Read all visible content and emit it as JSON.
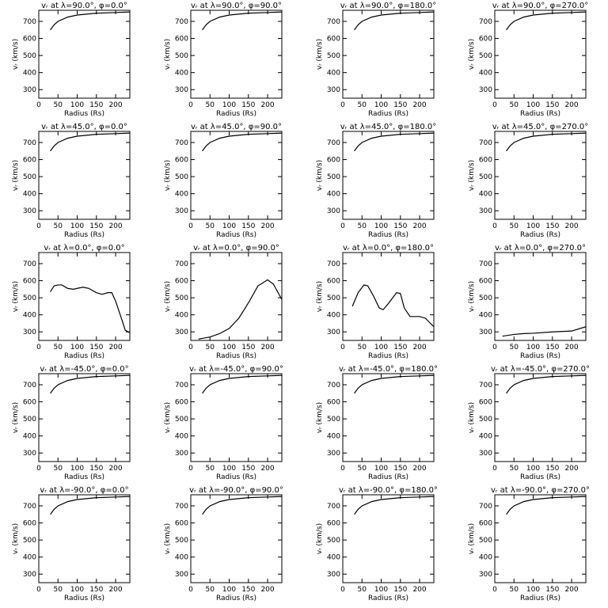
{
  "chart_data": [
    {
      "type": "line",
      "title": "vᵣ at λ=90.0°, φ=0.0°",
      "x_label": "Radius (Rs)",
      "y_label": "vᵣ (km/s)",
      "x": [
        30,
        40,
        50,
        75,
        100,
        150,
        200,
        237
      ],
      "values": [
        650,
        680,
        700,
        725,
        737,
        748,
        752,
        755
      ],
      "color": "#000000",
      "xlim": [
        0,
        237
      ],
      "ylim": [
        250,
        765
      ],
      "xticks": [
        0,
        50,
        100,
        150,
        200
      ],
      "yticks": [
        300,
        400,
        500,
        600,
        700
      ]
    },
    {
      "type": "line",
      "title": "vᵣ at λ=90.0°, φ=90.0°",
      "x_label": "Radius (Rs)",
      "y_label": "vᵣ (km/s)",
      "x": [
        30,
        40,
        50,
        75,
        100,
        150,
        200,
        237
      ],
      "values": [
        650,
        680,
        700,
        725,
        737,
        748,
        752,
        755
      ],
      "color": "#000000",
      "xlim": [
        0,
        237
      ],
      "ylim": [
        250,
        765
      ],
      "xticks": [
        0,
        50,
        100,
        150,
        200
      ],
      "yticks": [
        300,
        400,
        500,
        600,
        700
      ]
    },
    {
      "type": "line",
      "title": "vᵣ at λ=90.0°, φ=180.0°",
      "x_label": "Radius (Rs)",
      "y_label": "vᵣ (km/s)",
      "x": [
        30,
        40,
        50,
        75,
        100,
        150,
        200,
        237
      ],
      "values": [
        650,
        680,
        700,
        725,
        737,
        748,
        752,
        755
      ],
      "color": "#000000",
      "xlim": [
        0,
        237
      ],
      "ylim": [
        250,
        765
      ],
      "xticks": [
        0,
        50,
        100,
        150,
        200
      ],
      "yticks": [
        300,
        400,
        500,
        600,
        700
      ]
    },
    {
      "type": "line",
      "title": "vᵣ at λ=90.0°, φ=270.0°",
      "x_label": "Radius (Rs)",
      "y_label": "vᵣ (km/s)",
      "x": [
        30,
        40,
        50,
        75,
        100,
        150,
        200,
        237
      ],
      "values": [
        650,
        680,
        700,
        725,
        737,
        748,
        752,
        755
      ],
      "color": "#000000",
      "xlim": [
        0,
        237
      ],
      "ylim": [
        250,
        765
      ],
      "xticks": [
        0,
        50,
        100,
        150,
        200
      ],
      "yticks": [
        300,
        400,
        500,
        600,
        700
      ]
    },
    {
      "type": "line",
      "title": "vᵣ at λ=45.0°, φ=0.0°",
      "x_label": "Radius (Rs)",
      "y_label": "vᵣ (km/s)",
      "x": [
        30,
        40,
        50,
        75,
        100,
        150,
        200,
        237
      ],
      "values": [
        650,
        680,
        700,
        725,
        737,
        748,
        752,
        755
      ],
      "color": "#000000",
      "xlim": [
        0,
        237
      ],
      "ylim": [
        250,
        765
      ],
      "xticks": [
        0,
        50,
        100,
        150,
        200
      ],
      "yticks": [
        300,
        400,
        500,
        600,
        700
      ]
    },
    {
      "type": "line",
      "title": "vᵣ at λ=45.0°, φ=90.0°",
      "x_label": "Radius (Rs)",
      "y_label": "vᵣ (km/s)",
      "x": [
        30,
        40,
        50,
        75,
        100,
        150,
        200,
        237
      ],
      "values": [
        650,
        680,
        700,
        725,
        737,
        748,
        752,
        755
      ],
      "color": "#000000",
      "xlim": [
        0,
        237
      ],
      "ylim": [
        250,
        765
      ],
      "xticks": [
        0,
        50,
        100,
        150,
        200
      ],
      "yticks": [
        300,
        400,
        500,
        600,
        700
      ]
    },
    {
      "type": "line",
      "title": "vᵣ at λ=45.0°, φ=180.0°",
      "x_label": "Radius (Rs)",
      "y_label": "vᵣ (km/s)",
      "x": [
        30,
        40,
        50,
        75,
        100,
        150,
        200,
        237
      ],
      "values": [
        650,
        680,
        700,
        725,
        737,
        748,
        752,
        755
      ],
      "color": "#000000",
      "xlim": [
        0,
        237
      ],
      "ylim": [
        250,
        765
      ],
      "xticks": [
        0,
        50,
        100,
        150,
        200
      ],
      "yticks": [
        300,
        400,
        500,
        600,
        700
      ]
    },
    {
      "type": "line",
      "title": "vᵣ at λ=45.0°, φ=270.0°",
      "x_label": "Radius (Rs)",
      "y_label": "vᵣ (km/s)",
      "x": [
        30,
        40,
        50,
        75,
        100,
        150,
        200,
        237
      ],
      "values": [
        650,
        680,
        700,
        725,
        737,
        748,
        752,
        755
      ],
      "color": "#000000",
      "xlim": [
        0,
        237
      ],
      "ylim": [
        250,
        765
      ],
      "xticks": [
        0,
        50,
        100,
        150,
        200
      ],
      "yticks": [
        300,
        400,
        500,
        600,
        700
      ]
    },
    {
      "type": "line",
      "title": "vᵣ at λ=0.0°, φ=0.0°",
      "x_label": "Radius (Rs)",
      "y_label": "vᵣ (km/s)",
      "x": [
        30,
        40,
        50,
        60,
        75,
        90,
        100,
        115,
        130,
        150,
        165,
        180,
        190,
        200,
        215,
        225,
        237
      ],
      "values": [
        535,
        570,
        575,
        575,
        555,
        550,
        555,
        562,
        555,
        530,
        520,
        530,
        530,
        480,
        380,
        310,
        295
      ],
      "color": "#000000",
      "xlim": [
        0,
        237
      ],
      "ylim": [
        250,
        765
      ],
      "xticks": [
        0,
        50,
        100,
        150,
        200
      ],
      "yticks": [
        300,
        400,
        500,
        600,
        700
      ]
    },
    {
      "type": "line",
      "title": "vᵣ at λ=0.0°, φ=90.0°",
      "x_label": "Radius (Rs)",
      "y_label": "vᵣ (km/s)",
      "x": [
        20,
        50,
        75,
        100,
        125,
        150,
        175,
        200,
        215,
        237
      ],
      "values": [
        258,
        270,
        290,
        320,
        380,
        470,
        570,
        605,
        580,
        490
      ],
      "color": "#000000",
      "xlim": [
        0,
        237
      ],
      "ylim": [
        250,
        765
      ],
      "xticks": [
        0,
        50,
        100,
        150,
        200
      ],
      "yticks": [
        300,
        400,
        500,
        600,
        700
      ]
    },
    {
      "type": "line",
      "title": "vᵣ at λ=0.0°, φ=180.0°",
      "x_label": "Radius (Rs)",
      "y_label": "vᵣ (km/s)",
      "x": [
        25,
        40,
        55,
        65,
        80,
        95,
        105,
        120,
        140,
        150,
        160,
        175,
        200,
        215,
        237
      ],
      "values": [
        450,
        530,
        575,
        570,
        510,
        440,
        430,
        470,
        530,
        525,
        440,
        390,
        390,
        380,
        330
      ],
      "color": "#000000",
      "xlim": [
        0,
        237
      ],
      "ylim": [
        250,
        765
      ],
      "xticks": [
        0,
        50,
        100,
        150,
        200
      ],
      "yticks": [
        300,
        400,
        500,
        600,
        700
      ]
    },
    {
      "type": "line",
      "title": "vᵣ at λ=0.0°, φ=270.0°",
      "x_label": "Radius (Rs)",
      "y_label": "vᵣ (km/s)",
      "x": [
        20,
        50,
        75,
        100,
        150,
        200,
        237
      ],
      "values": [
        275,
        285,
        290,
        292,
        300,
        305,
        330
      ],
      "color": "#000000",
      "xlim": [
        0,
        237
      ],
      "ylim": [
        250,
        765
      ],
      "xticks": [
        0,
        50,
        100,
        150,
        200
      ],
      "yticks": [
        300,
        400,
        500,
        600,
        700
      ]
    },
    {
      "type": "line",
      "title": "vᵣ at λ=-45.0°, φ=0.0°",
      "x_label": "Radius (Rs)",
      "y_label": "vᵣ (km/s)",
      "x": [
        30,
        40,
        50,
        75,
        100,
        150,
        200,
        237
      ],
      "values": [
        650,
        680,
        700,
        725,
        737,
        748,
        752,
        755
      ],
      "color": "#000000",
      "xlim": [
        0,
        237
      ],
      "ylim": [
        250,
        765
      ],
      "xticks": [
        0,
        50,
        100,
        150,
        200
      ],
      "yticks": [
        300,
        400,
        500,
        600,
        700
      ]
    },
    {
      "type": "line",
      "title": "vᵣ at λ=-45.0°, φ=90.0°",
      "x_label": "Radius (Rs)",
      "y_label": "vᵣ (km/s)",
      "x": [
        30,
        40,
        50,
        75,
        100,
        150,
        200,
        237
      ],
      "values": [
        650,
        680,
        700,
        725,
        737,
        748,
        752,
        755
      ],
      "color": "#000000",
      "xlim": [
        0,
        237
      ],
      "ylim": [
        250,
        765
      ],
      "xticks": [
        0,
        50,
        100,
        150,
        200
      ],
      "yticks": [
        300,
        400,
        500,
        600,
        700
      ]
    },
    {
      "type": "line",
      "title": "vᵣ at λ=-45.0°, φ=180.0°",
      "x_label": "Radius (Rs)",
      "y_label": "vᵣ (km/s)",
      "x": [
        30,
        40,
        50,
        75,
        100,
        150,
        200,
        237
      ],
      "values": [
        650,
        680,
        700,
        725,
        737,
        748,
        752,
        755
      ],
      "color": "#000000",
      "xlim": [
        0,
        237
      ],
      "ylim": [
        250,
        765
      ],
      "xticks": [
        0,
        50,
        100,
        150,
        200
      ],
      "yticks": [
        300,
        400,
        500,
        600,
        700
      ]
    },
    {
      "type": "line",
      "title": "vᵣ at λ=-45.0°, φ=270.0°",
      "x_label": "Radius (Rs)",
      "y_label": "vᵣ (km/s)",
      "x": [
        30,
        40,
        50,
        75,
        100,
        150,
        200,
        237
      ],
      "values": [
        650,
        680,
        700,
        725,
        737,
        748,
        752,
        755
      ],
      "color": "#000000",
      "xlim": [
        0,
        237
      ],
      "ylim": [
        250,
        765
      ],
      "xticks": [
        0,
        50,
        100,
        150,
        200
      ],
      "yticks": [
        300,
        400,
        500,
        600,
        700
      ]
    },
    {
      "type": "line",
      "title": "vᵣ at λ=-90.0°, φ=0.0°",
      "x_label": "Radius (Rs)",
      "y_label": "vᵣ (km/s)",
      "x": [
        30,
        40,
        50,
        75,
        100,
        150,
        200,
        237
      ],
      "values": [
        650,
        680,
        700,
        725,
        737,
        748,
        752,
        755
      ],
      "color": "#000000",
      "xlim": [
        0,
        237
      ],
      "ylim": [
        250,
        765
      ],
      "xticks": [
        0,
        50,
        100,
        150,
        200
      ],
      "yticks": [
        300,
        400,
        500,
        600,
        700
      ]
    },
    {
      "type": "line",
      "title": "vᵣ at λ=-90.0°, φ=90.0°",
      "x_label": "Radius (Rs)",
      "y_label": "vᵣ (km/s)",
      "x": [
        30,
        40,
        50,
        75,
        100,
        150,
        200,
        237
      ],
      "values": [
        650,
        680,
        700,
        725,
        737,
        748,
        752,
        755
      ],
      "color": "#000000",
      "xlim": [
        0,
        237
      ],
      "ylim": [
        250,
        765
      ],
      "xticks": [
        0,
        50,
        100,
        150,
        200
      ],
      "yticks": [
        300,
        400,
        500,
        600,
        700
      ]
    },
    {
      "type": "line",
      "title": "vᵣ at λ=-90.0°, φ=180.0°",
      "x_label": "Radius (Rs)",
      "y_label": "vᵣ (km/s)",
      "x": [
        30,
        40,
        50,
        75,
        100,
        150,
        200,
        237
      ],
      "values": [
        650,
        680,
        700,
        725,
        737,
        748,
        752,
        755
      ],
      "color": "#000000",
      "xlim": [
        0,
        237
      ],
      "ylim": [
        250,
        765
      ],
      "xticks": [
        0,
        50,
        100,
        150,
        200
      ],
      "yticks": [
        300,
        400,
        500,
        600,
        700
      ]
    },
    {
      "type": "line",
      "title": "vᵣ at λ=-90.0°, φ=270.0°",
      "x_label": "Radius (Rs)",
      "y_label": "vᵣ (km/s)",
      "x": [
        30,
        40,
        50,
        75,
        100,
        150,
        200,
        237
      ],
      "values": [
        650,
        680,
        700,
        725,
        737,
        748,
        752,
        755
      ],
      "color": "#000000",
      "xlim": [
        0,
        237
      ],
      "ylim": [
        250,
        765
      ],
      "xticks": [
        0,
        50,
        100,
        150,
        200
      ],
      "yticks": [
        300,
        400,
        500,
        600,
        700
      ]
    }
  ]
}
